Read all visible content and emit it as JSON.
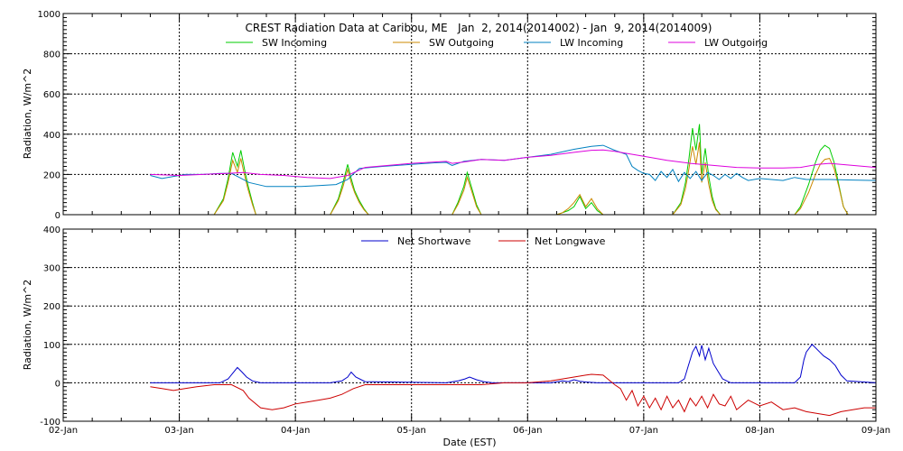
{
  "chart_data": [
    {
      "type": "line",
      "title": "CREST Radiation Data at Caribou, ME   Jan  2, 2014(2014002) - Jan  9, 2014(2014009)",
      "xlabel": "",
      "ylabel": "Radiation, W/m^2",
      "xlim": [
        0,
        7
      ],
      "ylim": [
        0,
        1000
      ],
      "yticks": [
        0,
        200,
        400,
        600,
        800,
        1000
      ],
      "ytick_labels": [
        "0",
        "200",
        "400",
        "600",
        "800",
        "1000"
      ],
      "grid": true,
      "legend_location": "top",
      "series": [
        {
          "name": "SW Incoming",
          "color": "#00cc00",
          "x": [
            0.75,
            1.3,
            1.38,
            1.42,
            1.46,
            1.5,
            1.53,
            1.56,
            1.59,
            1.63,
            1.66,
            1.7,
            1.75,
            2.3,
            2.37,
            2.41,
            2.45,
            2.48,
            2.51,
            2.55,
            2.59,
            2.63,
            2.66,
            2.7,
            2.75,
            3.35,
            3.4,
            3.45,
            3.48,
            3.5,
            3.53,
            3.56,
            3.6,
            3.66,
            3.7,
            3.75,
            4.25,
            4.3,
            4.35,
            4.4,
            4.45,
            4.5,
            4.55,
            4.6,
            4.65,
            4.7,
            4.75,
            5.25,
            5.32,
            5.36,
            5.39,
            5.42,
            5.45,
            5.48,
            5.5,
            5.53,
            5.56,
            5.59,
            5.62,
            5.66,
            5.7,
            5.75,
            6.3,
            6.35,
            6.42,
            6.48,
            6.52,
            6.56,
            6.6,
            6.64,
            6.68,
            6.72,
            6.76,
            7.0
          ],
          "y": [
            0,
            0,
            80,
            180,
            310,
            240,
            320,
            230,
            150,
            60,
            0,
            0,
            0,
            0,
            80,
            160,
            250,
            180,
            120,
            70,
            30,
            0,
            0,
            0,
            0,
            0,
            60,
            140,
            210,
            170,
            110,
            50,
            0,
            0,
            0,
            0,
            0,
            10,
            20,
            40,
            90,
            30,
            60,
            20,
            0,
            0,
            0,
            0,
            60,
            160,
            280,
            430,
            320,
            450,
            200,
            330,
            190,
            90,
            30,
            0,
            0,
            0,
            0,
            40,
            150,
            260,
            320,
            345,
            330,
            260,
            150,
            40,
            0,
            0
          ]
        },
        {
          "name": "SW Outgoing",
          "color": "#cc8800",
          "x": [
            0.75,
            1.3,
            1.38,
            1.42,
            1.46,
            1.5,
            1.53,
            1.56,
            1.59,
            1.63,
            1.66,
            1.7,
            1.75,
            2.3,
            2.37,
            2.41,
            2.45,
            2.48,
            2.51,
            2.55,
            2.59,
            2.63,
            2.66,
            2.7,
            2.75,
            3.35,
            3.4,
            3.45,
            3.48,
            3.5,
            3.53,
            3.56,
            3.6,
            3.66,
            3.7,
            3.75,
            4.25,
            4.3,
            4.35,
            4.4,
            4.45,
            4.5,
            4.55,
            4.6,
            4.65,
            4.7,
            4.75,
            5.25,
            5.32,
            5.36,
            5.39,
            5.42,
            5.45,
            5.48,
            5.5,
            5.53,
            5.56,
            5.59,
            5.62,
            5.66,
            5.7,
            5.75,
            6.3,
            6.35,
            6.42,
            6.48,
            6.52,
            6.56,
            6.6,
            6.64,
            6.68,
            6.72,
            6.76,
            7.0
          ],
          "y": [
            0,
            0,
            70,
            160,
            270,
            210,
            280,
            200,
            130,
            50,
            0,
            0,
            0,
            0,
            70,
            140,
            225,
            160,
            110,
            60,
            25,
            0,
            0,
            0,
            0,
            0,
            50,
            120,
            185,
            150,
            95,
            40,
            0,
            0,
            0,
            0,
            0,
            10,
            30,
            60,
            100,
            40,
            80,
            30,
            0,
            0,
            0,
            0,
            50,
            130,
            230,
            340,
            250,
            360,
            160,
            260,
            150,
            70,
            25,
            0,
            0,
            0,
            0,
            30,
            110,
            200,
            250,
            275,
            280,
            230,
            140,
            40,
            0,
            0
          ]
        },
        {
          "name": "LW Incoming",
          "color": "#0080c0",
          "x": [
            0.75,
            0.85,
            0.95,
            1.05,
            1.2,
            1.35,
            1.45,
            1.5,
            1.6,
            1.75,
            1.9,
            2.05,
            2.2,
            2.35,
            2.45,
            2.55,
            2.75,
            3.0,
            3.2,
            3.3,
            3.35,
            3.45,
            3.6,
            3.8,
            4.0,
            4.2,
            4.4,
            4.55,
            4.65,
            4.75,
            4.85,
            4.9,
            4.95,
            5.0,
            5.05,
            5.1,
            5.15,
            5.2,
            5.25,
            5.3,
            5.35,
            5.4,
            5.45,
            5.5,
            5.55,
            5.6,
            5.65,
            5.7,
            5.75,
            5.8,
            5.85,
            5.9,
            6.0,
            6.1,
            6.2,
            6.3,
            6.4,
            6.6,
            6.8,
            7.0
          ],
          "y": [
            195,
            180,
            190,
            200,
            200,
            205,
            205,
            190,
            160,
            140,
            140,
            140,
            145,
            150,
            175,
            230,
            240,
            250,
            258,
            260,
            245,
            265,
            275,
            270,
            285,
            300,
            325,
            340,
            345,
            320,
            300,
            240,
            220,
            205,
            200,
            170,
            215,
            185,
            225,
            165,
            210,
            180,
            215,
            170,
            210,
            195,
            175,
            200,
            180,
            205,
            185,
            170,
            180,
            175,
            170,
            185,
            175,
            175,
            172,
            170
          ]
        },
        {
          "name": "LW Outgoing",
          "color": "#dd00dd",
          "x": [
            0.75,
            1.0,
            1.2,
            1.4,
            1.55,
            1.7,
            1.9,
            2.1,
            2.3,
            2.45,
            2.6,
            2.8,
            3.0,
            3.2,
            3.3,
            3.35,
            3.45,
            3.6,
            3.8,
            4.0,
            4.2,
            4.4,
            4.55,
            4.65,
            4.75,
            4.85,
            5.0,
            5.2,
            5.4,
            5.5,
            5.6,
            5.8,
            6.0,
            6.2,
            6.35,
            6.5,
            6.6,
            6.8,
            7.0
          ],
          "y": [
            200,
            195,
            200,
            205,
            210,
            200,
            195,
            185,
            180,
            195,
            235,
            245,
            255,
            262,
            265,
            255,
            262,
            275,
            270,
            285,
            295,
            310,
            320,
            322,
            315,
            305,
            290,
            270,
            255,
            250,
            245,
            235,
            232,
            232,
            235,
            250,
            255,
            245,
            235
          ]
        }
      ]
    },
    {
      "type": "line",
      "title": "",
      "xlabel": "Date (EST)",
      "ylabel": "Radiation, W/m^2",
      "xlim": [
        0,
        7
      ],
      "ylim": [
        -100,
        400
      ],
      "yticks": [
        -100,
        0,
        100,
        200,
        300,
        400
      ],
      "ytick_labels": [
        "-100",
        "0",
        "100",
        "200",
        "300",
        "400"
      ],
      "xtick_labels": [
        "02-Jan",
        "03-Jan",
        "04-Jan",
        "05-Jan",
        "06-Jan",
        "07-Jan",
        "08-Jan",
        "09-Jan"
      ],
      "grid": true,
      "legend_location": "top",
      "series": [
        {
          "name": "Net Shortwave",
          "color": "#0000cc",
          "x": [
            0.75,
            1.35,
            1.42,
            1.46,
            1.5,
            1.54,
            1.58,
            1.63,
            1.7,
            2.3,
            2.4,
            2.45,
            2.48,
            2.52,
            2.6,
            3.3,
            3.4,
            3.46,
            3.5,
            3.56,
            3.62,
            3.7,
            4.2,
            4.3,
            4.35,
            4.4,
            4.45,
            4.5,
            4.6,
            5.3,
            5.35,
            5.38,
            5.42,
            5.45,
            5.48,
            5.5,
            5.53,
            5.56,
            5.6,
            5.64,
            5.68,
            5.75,
            6.3,
            6.35,
            6.38,
            6.4,
            6.45,
            6.5,
            6.55,
            6.6,
            6.65,
            6.7,
            6.75,
            7.0
          ],
          "y": [
            0,
            0,
            10,
            25,
            40,
            28,
            15,
            5,
            0,
            0,
            5,
            15,
            28,
            15,
            3,
            0,
            5,
            10,
            15,
            8,
            3,
            0,
            0,
            5,
            3,
            8,
            4,
            2,
            0,
            0,
            10,
            40,
            80,
            95,
            70,
            98,
            60,
            90,
            50,
            30,
            10,
            0,
            0,
            15,
            60,
            80,
            100,
            85,
            70,
            60,
            45,
            20,
            5,
            0
          ]
        },
        {
          "name": "Net Longwave",
          "color": "#cc0000",
          "x": [
            0.75,
            0.85,
            0.95,
            1.05,
            1.15,
            1.3,
            1.45,
            1.55,
            1.6,
            1.7,
            1.8,
            1.9,
            2.0,
            2.1,
            2.2,
            2.3,
            2.4,
            2.5,
            2.6,
            2.8,
            3.0,
            3.2,
            3.4,
            3.6,
            3.8,
            4.0,
            4.2,
            4.4,
            4.5,
            4.55,
            4.65,
            4.75,
            4.8,
            4.85,
            4.9,
            4.95,
            5.0,
            5.05,
            5.1,
            5.15,
            5.2,
            5.25,
            5.3,
            5.35,
            5.4,
            5.45,
            5.5,
            5.55,
            5.6,
            5.65,
            5.7,
            5.75,
            5.8,
            5.9,
            6.0,
            6.1,
            6.2,
            6.3,
            6.4,
            6.5,
            6.6,
            6.7,
            6.8,
            6.9,
            7.0
          ],
          "y": [
            -10,
            -15,
            -20,
            -15,
            -10,
            -5,
            -5,
            -20,
            -40,
            -65,
            -70,
            -65,
            -55,
            -50,
            -45,
            -40,
            -30,
            -15,
            -5,
            -5,
            -5,
            -5,
            -5,
            -5,
            0,
            0,
            5,
            15,
            20,
            22,
            20,
            -5,
            -15,
            -45,
            -20,
            -60,
            -35,
            -65,
            -40,
            -70,
            -35,
            -65,
            -45,
            -75,
            -40,
            -60,
            -35,
            -65,
            -30,
            -55,
            -60,
            -35,
            -70,
            -45,
            -60,
            -50,
            -70,
            -65,
            -75,
            -80,
            -85,
            -75,
            -70,
            -65,
            -65
          ]
        }
      ]
    }
  ]
}
